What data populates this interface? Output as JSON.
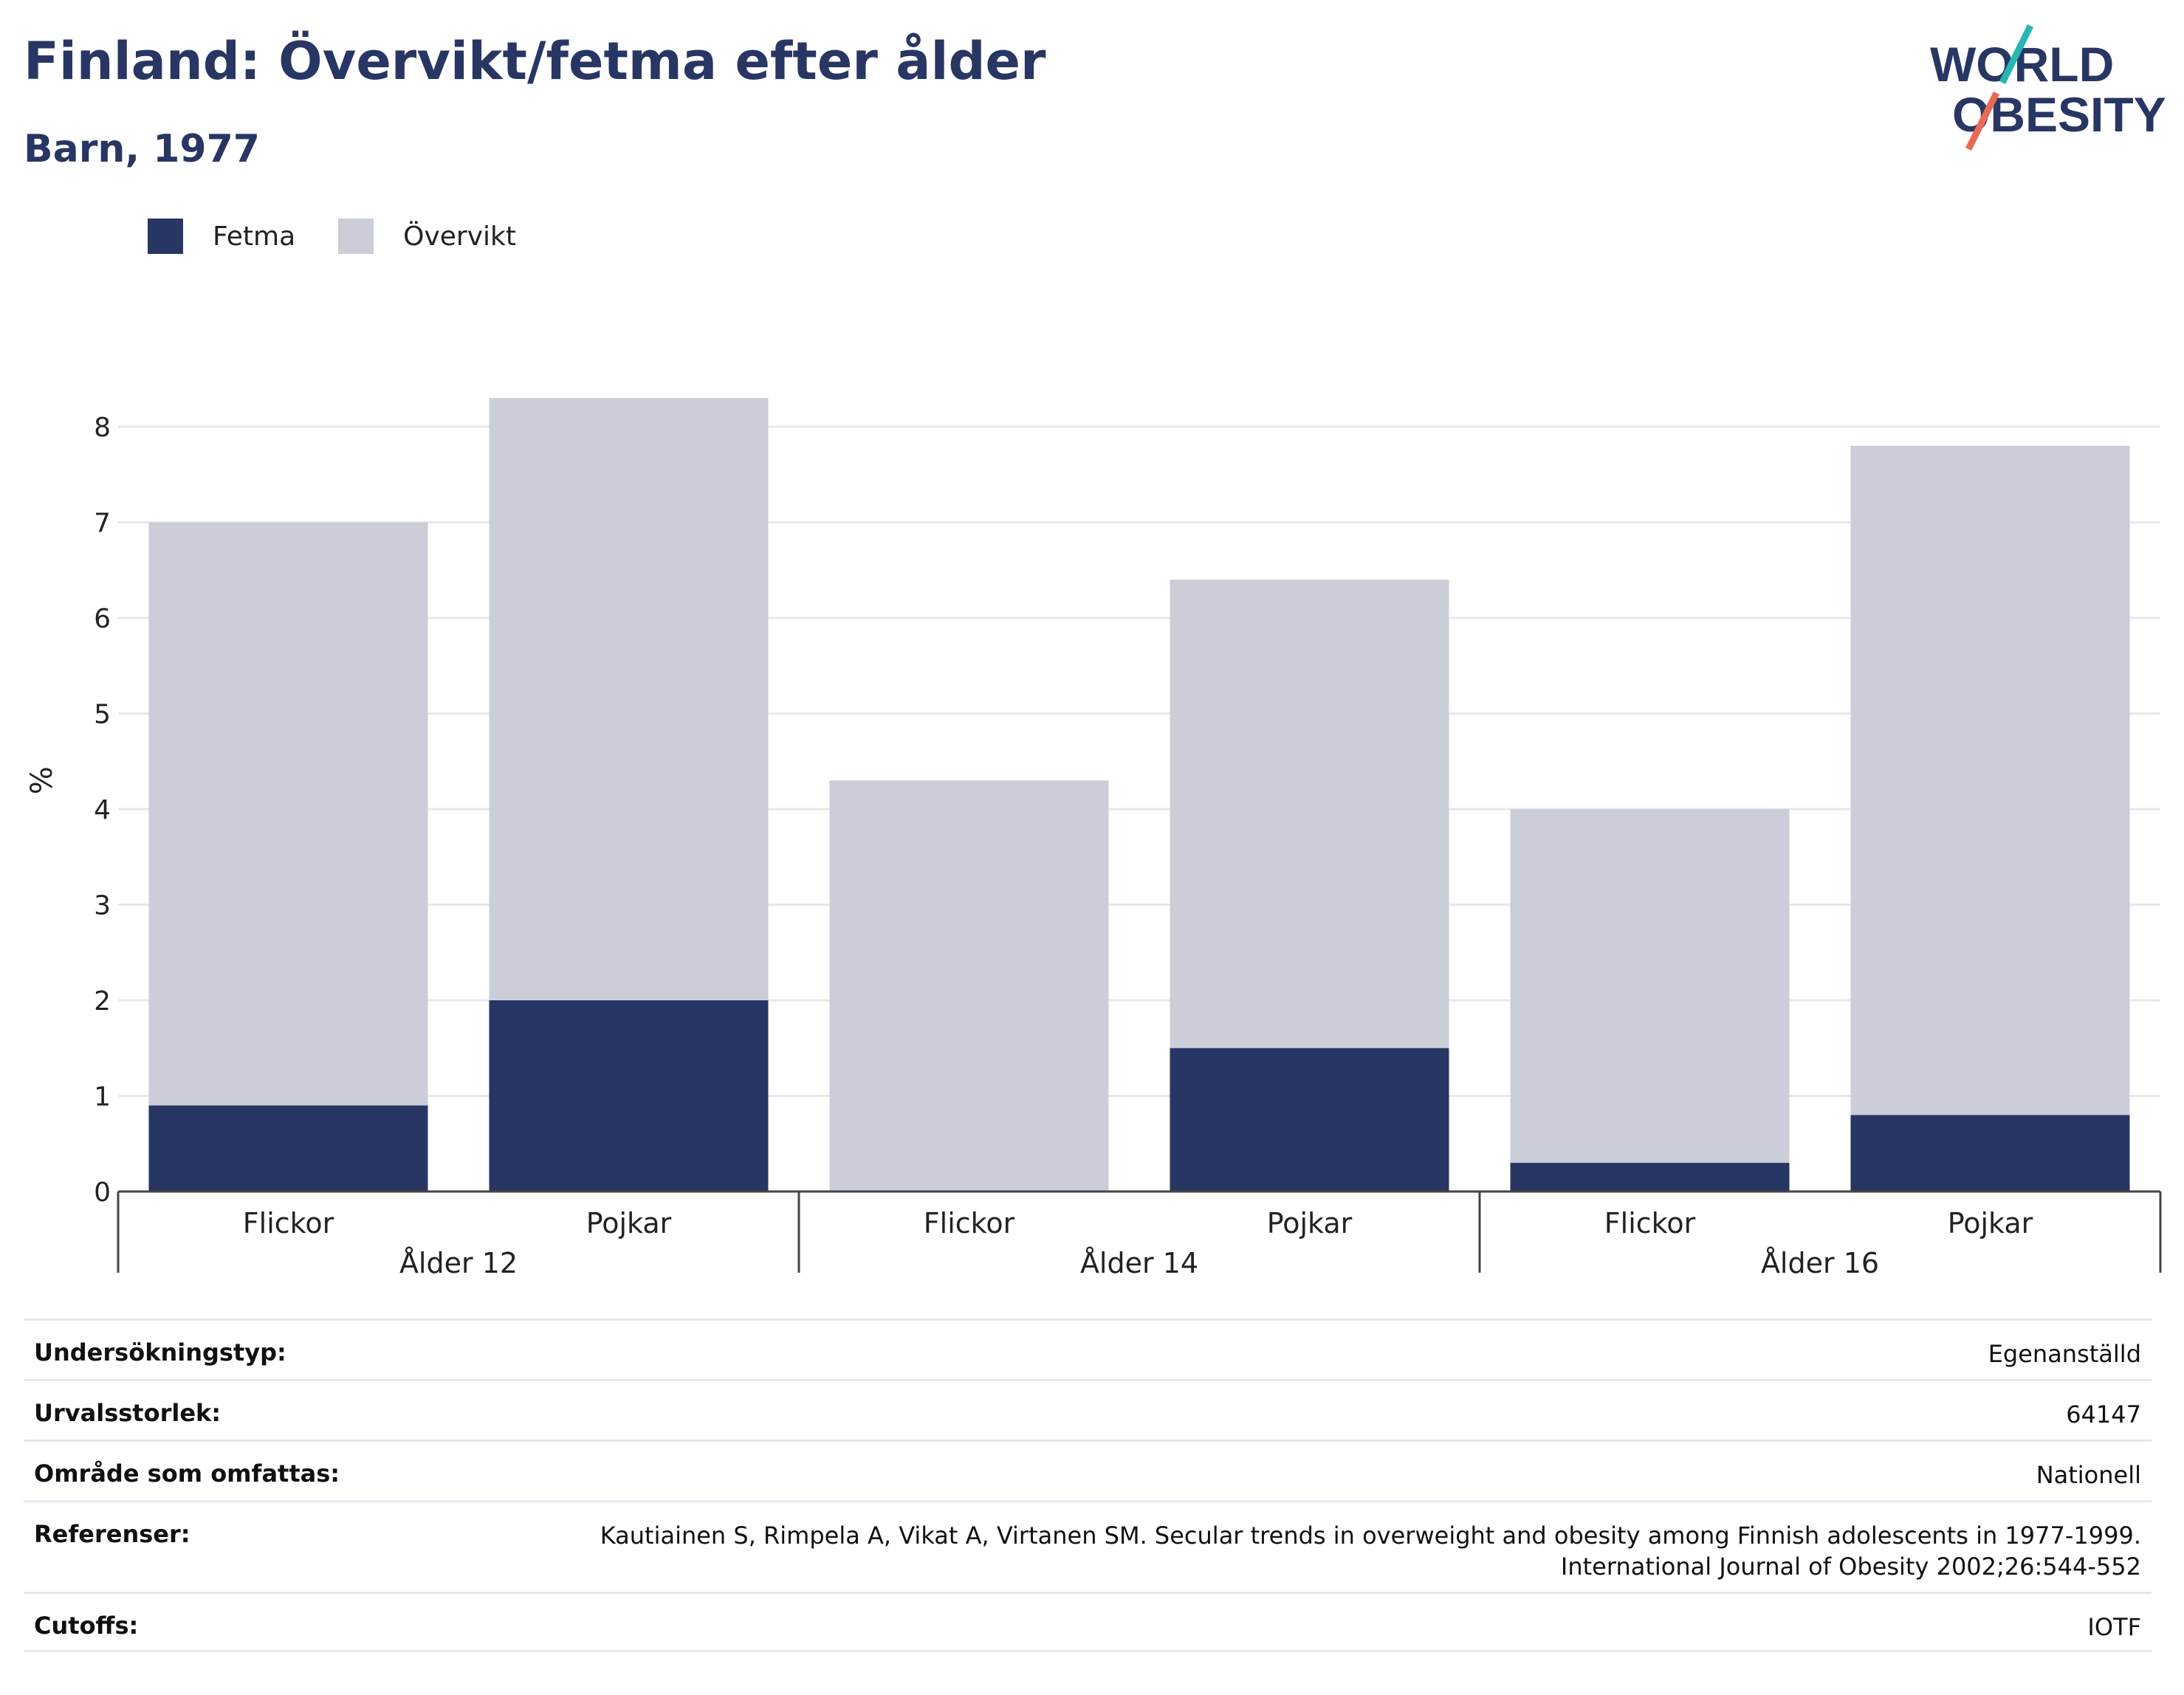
{
  "header": {
    "title": "Finland: Övervikt/fetma efter ålder",
    "subtitle": "Barn, 1977"
  },
  "logo": {
    "line1": "WORLD",
    "line2": "OBESITY"
  },
  "colors": {
    "fetma": "#283664",
    "overvikt": "#cbcdd9",
    "title": "#283664",
    "logo_teal": "#27b6b1",
    "logo_coral": "#e76a55"
  },
  "legend": [
    {
      "label": "Fetma",
      "color": "#283664"
    },
    {
      "label": "Övervikt",
      "color": "#cbcdd9"
    }
  ],
  "chart_data": {
    "type": "bar",
    "stacked": true,
    "ylabel": "%",
    "ylim": [
      0,
      8.5
    ],
    "yticks": [
      0,
      1,
      2,
      3,
      4,
      5,
      6,
      7,
      8
    ],
    "grid": true,
    "legend_position": "top-left",
    "groups": [
      "Ålder 12",
      "Ålder 14",
      "Ålder 16"
    ],
    "categories": [
      "Flickor",
      "Pojkar",
      "Flickor",
      "Pojkar",
      "Flickor",
      "Pojkar"
    ],
    "series": [
      {
        "name": "Fetma",
        "values": [
          0.9,
          2.0,
          0.0,
          1.5,
          0.3,
          0.8
        ]
      },
      {
        "name": "Övervikt",
        "values": [
          6.1,
          6.3,
          4.3,
          4.9,
          3.7,
          7.0
        ]
      }
    ]
  },
  "info": {
    "survey_type": {
      "label": "Undersökningstyp:",
      "value": "Egenanställd"
    },
    "sample_size": {
      "label": "Urvalsstorlek:",
      "value": "64147"
    },
    "area": {
      "label": "Område som omfattas:",
      "value": "Nationell"
    },
    "references": {
      "label": "Referenser:",
      "line1": "Kautiainen S, Rimpela A, Vikat A, Virtanen SM. Secular trends in overweight and obesity among Finnish adolescents in 1977-1999.",
      "line2": "International Journal of Obesity 2002;26:544-552"
    },
    "cutoffs": {
      "label": "Cutoffs:",
      "value": "IOTF"
    }
  }
}
